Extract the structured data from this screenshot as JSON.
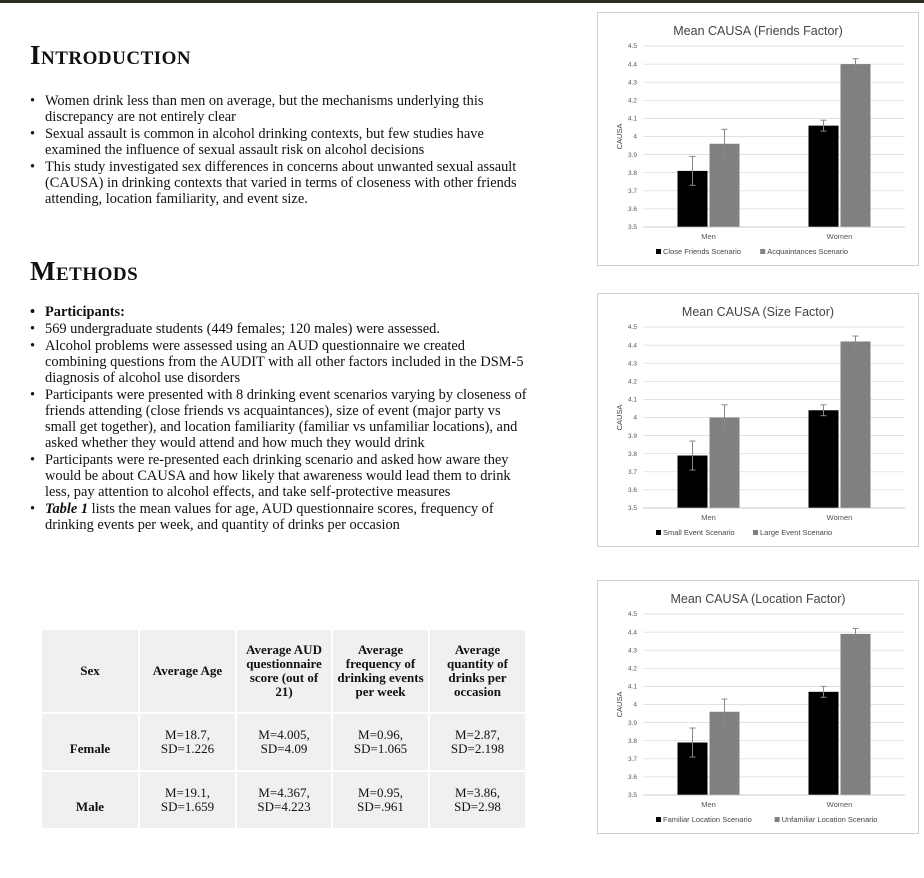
{
  "introduction": {
    "title": "Introduction",
    "bullets": [
      "Women drink less than men on average, but the mechanisms underlying this discrepancy are not entirely clear",
      "Sexual assault is common in alcohol drinking contexts, but few studies have examined the influence of sexual assault risk on alcohol decisions",
      "This study investigated sex differences in concerns about unwanted sexual assault (CAUSA) in drinking contexts that varied in terms of closeness with other friends attending, location familiarity, and event size."
    ]
  },
  "methods": {
    "title": "Methods",
    "participants_label": "Participants:",
    "bullets": [
      "569 undergraduate students (449 females; 120 males) were assessed.",
      "Alcohol problems were assessed using an AUD questionnaire we created combining questions from the AUDIT with all other factors included in the DSM-5 diagnosis of alcohol use disorders",
      "Participants were presented with 8 drinking event scenarios varying by closeness of friends attending (close friends vs acquaintances), size of event (major party vs small get together), and location familiarity (familiar vs unfamiliar locations), and asked whether they would attend and how much they would drink",
      "Participants were re-presented each drinking scenario and asked how aware they would be about CAUSA and how likely that awareness would lead them to drink less, pay attention to alcohol effects, and take self-protective measures"
    ],
    "table_ref_bold": "Table 1",
    "table_ref_rest": " lists the mean values for age, AUD questionnaire scores, frequency of drinking events per week, and quantity of drinks per occasion"
  },
  "table": {
    "headers": [
      "Sex",
      "Average Age",
      "Average AUD questionnaire score (out of 21)",
      "Average frequency of drinking events per week",
      "Average quantity of drinks per occasion"
    ],
    "rows": [
      {
        "sex": "Female",
        "cells": [
          [
            "M=18.7,",
            "SD=1.226"
          ],
          [
            "M=4.005,",
            "SD=4.09"
          ],
          [
            "M=0.96,",
            "SD=1.065"
          ],
          [
            "M=2.87,",
            "SD=2.198"
          ]
        ]
      },
      {
        "sex": "Male",
        "cells": [
          [
            "M=19.1,",
            "SD=1.659"
          ],
          [
            "M=4.367,",
            "SD=4.223"
          ],
          [
            "M=0.95,",
            "SD=.961"
          ],
          [
            "M=3.86,",
            "SD=2.98"
          ]
        ]
      }
    ]
  },
  "chart_data": [
    {
      "type": "bar",
      "title": "Mean CAUSA (Friends Factor)",
      "ylabel": "CAUSA",
      "categories": [
        "Men",
        "Women"
      ],
      "ylim": [
        3.5,
        4.5
      ],
      "yticks": [
        "3.5",
        "3.6",
        "3.7",
        "3.8",
        "3.9",
        "4",
        "4.1",
        "4.2",
        "4.3",
        "4.4",
        "4.5"
      ],
      "grid": true,
      "legend": "bottom",
      "series": [
        {
          "name": "Close Friends Scenario",
          "color": "#000000",
          "values": [
            3.81,
            4.06
          ],
          "errors": [
            0.08,
            0.03
          ]
        },
        {
          "name": "Acquaintances Scenario",
          "color": "#808080",
          "values": [
            3.96,
            4.4
          ],
          "errors": [
            0.08,
            0.03
          ]
        }
      ]
    },
    {
      "type": "bar",
      "title": "Mean CAUSA (Size Factor)",
      "ylabel": "CAUSA",
      "categories": [
        "Men",
        "Women"
      ],
      "ylim": [
        3.5,
        4.5
      ],
      "yticks": [
        "3.5",
        "3.6",
        "3.7",
        "3.8",
        "3.9",
        "4",
        "4.1",
        "4.2",
        "4.3",
        "4.4",
        "4.5"
      ],
      "grid": true,
      "legend": "bottom",
      "series": [
        {
          "name": "Small Event Scenario",
          "color": "#000000",
          "values": [
            3.79,
            4.04
          ],
          "errors": [
            0.08,
            0.03
          ]
        },
        {
          "name": "Large Event Scenario",
          "color": "#808080",
          "values": [
            4.0,
            4.42
          ],
          "errors": [
            0.07,
            0.03
          ]
        }
      ]
    },
    {
      "type": "bar",
      "title": "Mean CAUSA (Location Factor)",
      "ylabel": "CAUSA",
      "categories": [
        "Men",
        "Women"
      ],
      "ylim": [
        3.5,
        4.5
      ],
      "yticks": [
        "3.5",
        "3.6",
        "3.7",
        "3.8",
        "3.9",
        "4",
        "4.1",
        "4.2",
        "4.3",
        "4.4",
        "4.5"
      ],
      "grid": true,
      "legend": "bottom",
      "series": [
        {
          "name": "Familiar Location Scenario",
          "color": "#000000",
          "values": [
            3.79,
            4.07
          ],
          "errors": [
            0.08,
            0.03
          ]
        },
        {
          "name": "Unfamiliar Location Scenario",
          "color": "#808080",
          "values": [
            3.96,
            4.39
          ],
          "errors": [
            0.07,
            0.03
          ]
        }
      ]
    }
  ]
}
